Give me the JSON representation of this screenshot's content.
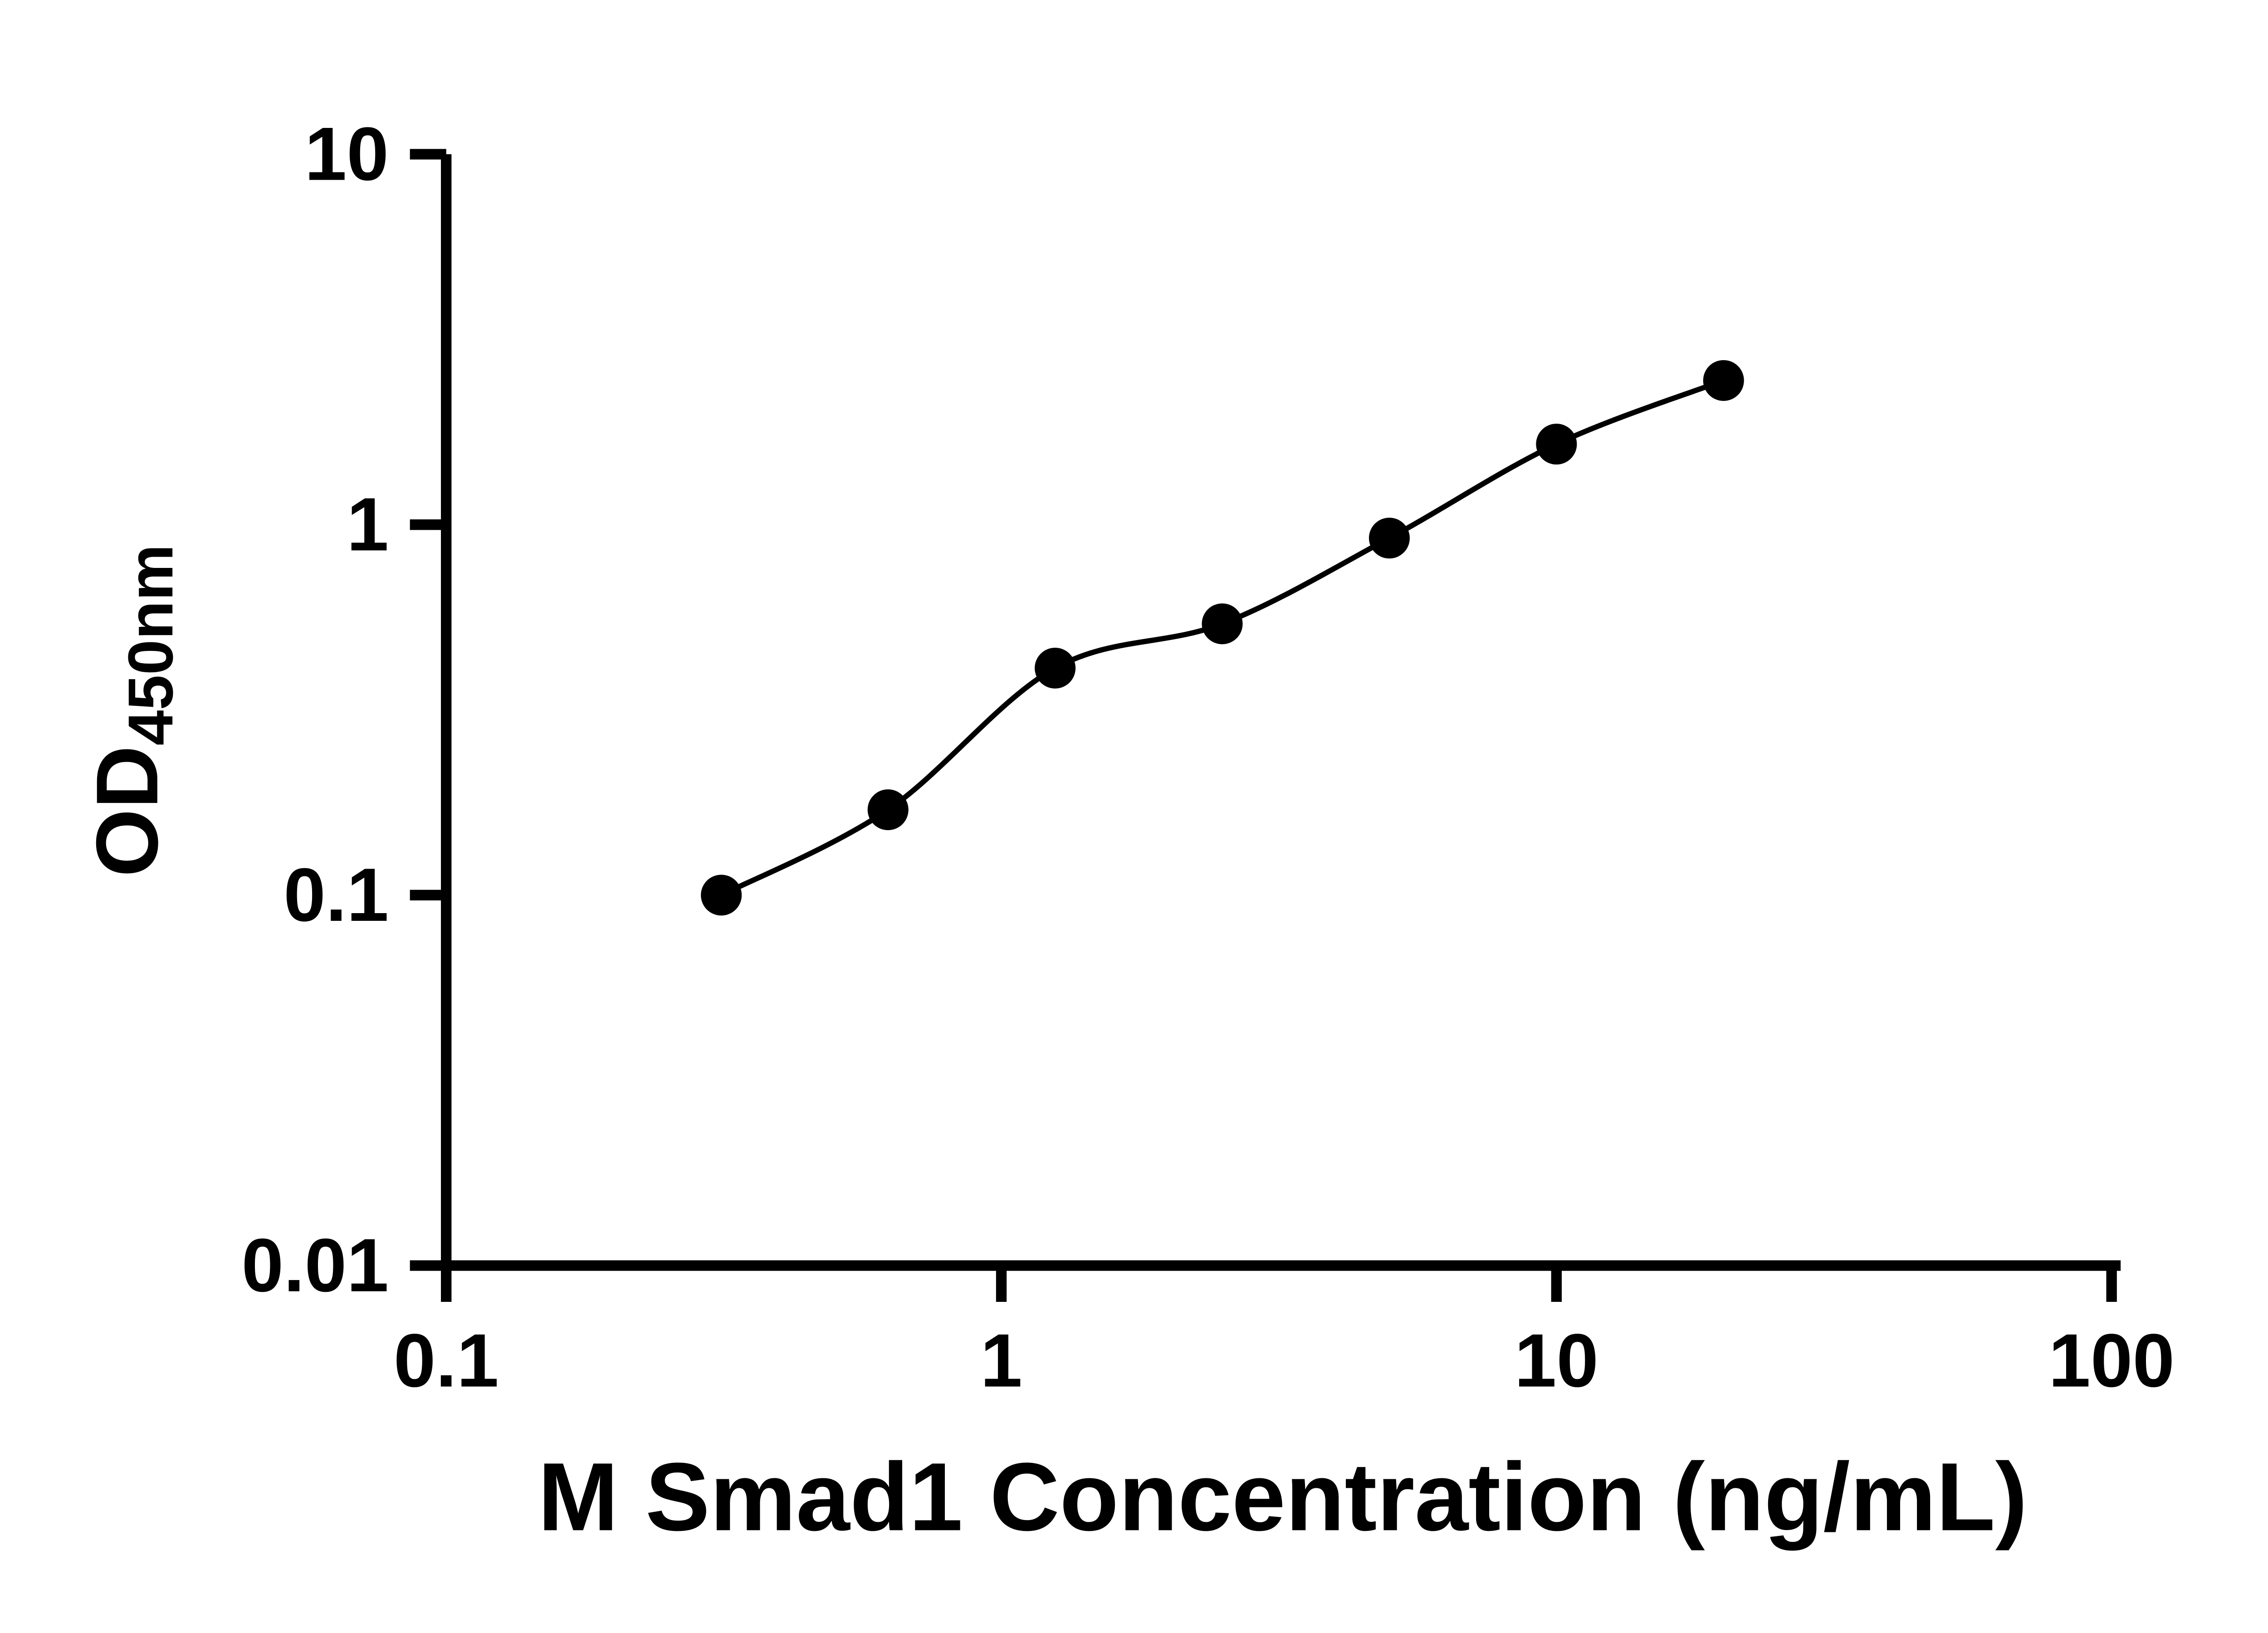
{
  "figure": {
    "background_color": "#ffffff",
    "ink_color": "#000000"
  },
  "chart_data": {
    "type": "scatter",
    "title": "",
    "xlabel": "M Smad1 Concentration (ng/mL)",
    "ylabel": "OD",
    "ylabel_subscript": "450nm",
    "x_scale": "log",
    "y_scale": "log",
    "xlim": [
      0.1,
      100
    ],
    "ylim": [
      0.01,
      10
    ],
    "x_ticks": [
      0.1,
      1,
      10,
      100
    ],
    "x_tick_labels": [
      "0.1",
      "1",
      "10",
      "100"
    ],
    "y_ticks": [
      0.01,
      0.1,
      1,
      10
    ],
    "y_tick_labels": [
      "0.01",
      "0.1",
      "1",
      "10"
    ],
    "grid": false,
    "legend": "none",
    "marker": "filled-circle",
    "curve": "smooth fitted line through standards",
    "points": [
      {
        "x": 0.313,
        "y": 0.1
      },
      {
        "x": 0.625,
        "y": 0.17
      },
      {
        "x": 1.25,
        "y": 0.41
      },
      {
        "x": 2.5,
        "y": 0.54
      },
      {
        "x": 5,
        "y": 0.92
      },
      {
        "x": 10,
        "y": 1.65
      },
      {
        "x": 20,
        "y": 2.45
      }
    ]
  }
}
